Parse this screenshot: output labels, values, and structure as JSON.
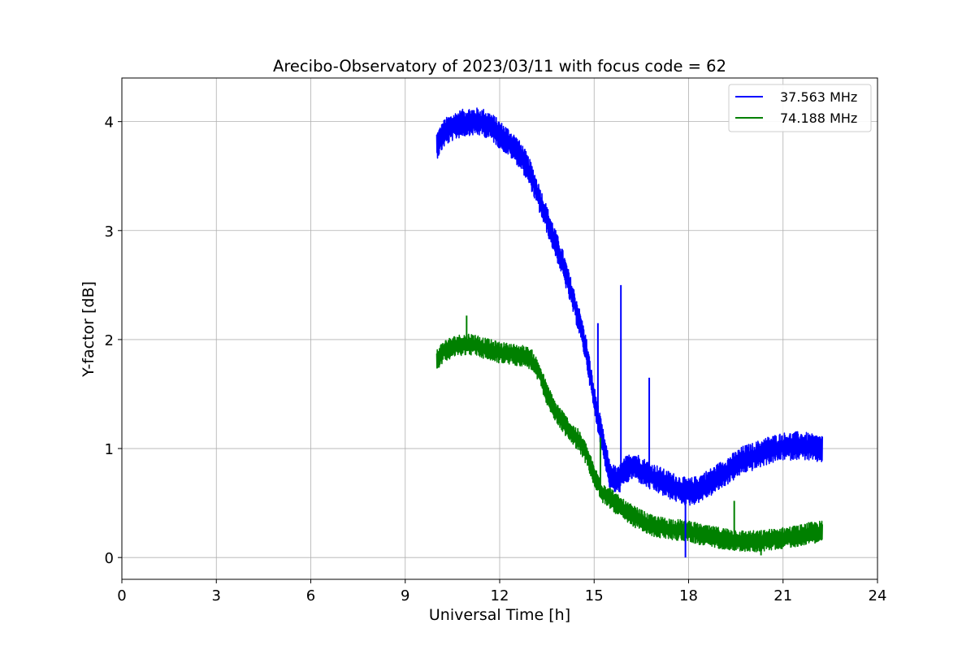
{
  "chart_data": {
    "type": "line",
    "title": "Arecibo-Observatory of 2023/03/11 with focus code = 62",
    "xlabel": "Universal Time [h]",
    "ylabel": "Y-factor [dB]",
    "xlim": [
      0,
      24
    ],
    "ylim": [
      -0.2,
      4.4
    ],
    "xticks": [
      0,
      3,
      6,
      9,
      12,
      15,
      18,
      21,
      24
    ],
    "yticks": [
      0,
      1,
      2,
      3,
      4
    ],
    "grid": true,
    "legend_position": "top-right",
    "series": [
      {
        "name": "37.563 MHz",
        "color": "#0000ff",
        "x": [
          10.0,
          10.25,
          10.5,
          10.75,
          11.0,
          11.25,
          11.5,
          11.75,
          12.0,
          12.25,
          12.5,
          12.75,
          13.0,
          13.25,
          13.5,
          13.75,
          14.0,
          14.25,
          14.5,
          14.75,
          15.0,
          15.25,
          15.5,
          15.75,
          16.0,
          16.25,
          16.5,
          16.75,
          17.0,
          17.25,
          17.5,
          17.75,
          18.0,
          18.25,
          18.5,
          18.75,
          19.0,
          19.25,
          19.5,
          19.75,
          20.0,
          20.25,
          20.5,
          20.75,
          21.0,
          21.25,
          21.5,
          21.75,
          22.0,
          22.25
        ],
        "y": [
          3.78,
          3.9,
          3.95,
          3.98,
          4.0,
          4.0,
          3.99,
          3.95,
          3.88,
          3.82,
          3.75,
          3.65,
          3.5,
          3.3,
          3.1,
          2.9,
          2.7,
          2.45,
          2.2,
          1.9,
          1.45,
          1.1,
          0.75,
          0.7,
          0.8,
          0.85,
          0.8,
          0.75,
          0.72,
          0.68,
          0.65,
          0.62,
          0.6,
          0.62,
          0.66,
          0.7,
          0.75,
          0.8,
          0.85,
          0.9,
          0.92,
          0.95,
          0.98,
          1.0,
          1.02,
          1.02,
          1.03,
          1.02,
          1.0,
          1.0
        ]
      },
      {
        "name": "74.188 MHz",
        "color": "#008000",
        "x": [
          10.0,
          10.25,
          10.5,
          10.75,
          11.0,
          11.25,
          11.5,
          11.75,
          12.0,
          12.25,
          12.5,
          12.75,
          13.0,
          13.25,
          13.5,
          13.75,
          14.0,
          14.25,
          14.5,
          14.75,
          15.0,
          15.25,
          15.5,
          15.75,
          16.0,
          16.25,
          16.5,
          16.75,
          17.0,
          17.25,
          17.5,
          17.75,
          18.0,
          18.25,
          18.5,
          18.75,
          19.0,
          19.25,
          19.5,
          19.75,
          20.0,
          20.25,
          20.5,
          20.75,
          21.0,
          21.25,
          21.5,
          21.75,
          22.0,
          22.25
        ],
        "y": [
          1.82,
          1.9,
          1.93,
          1.95,
          1.96,
          1.95,
          1.92,
          1.9,
          1.88,
          1.87,
          1.86,
          1.85,
          1.82,
          1.7,
          1.5,
          1.35,
          1.25,
          1.15,
          1.08,
          0.95,
          0.75,
          0.6,
          0.55,
          0.48,
          0.42,
          0.38,
          0.34,
          0.3,
          0.28,
          0.27,
          0.26,
          0.25,
          0.25,
          0.22,
          0.2,
          0.19,
          0.18,
          0.17,
          0.16,
          0.15,
          0.15,
          0.15,
          0.16,
          0.17,
          0.18,
          0.19,
          0.2,
          0.22,
          0.23,
          0.24
        ]
      }
    ],
    "spikes": [
      {
        "series": 0,
        "x": 15.12,
        "y": 2.15
      },
      {
        "series": 0,
        "x": 15.85,
        "y": 2.5
      },
      {
        "series": 0,
        "x": 16.75,
        "y": 1.65
      },
      {
        "series": 0,
        "x": 17.9,
        "y": 0.0
      },
      {
        "series": 1,
        "x": 10.95,
        "y": 2.22
      },
      {
        "series": 1,
        "x": 15.2,
        "y": 1.1
      },
      {
        "series": 1,
        "x": 19.45,
        "y": 0.52
      },
      {
        "series": 1,
        "x": 20.3,
        "y": 0.02
      }
    ]
  }
}
